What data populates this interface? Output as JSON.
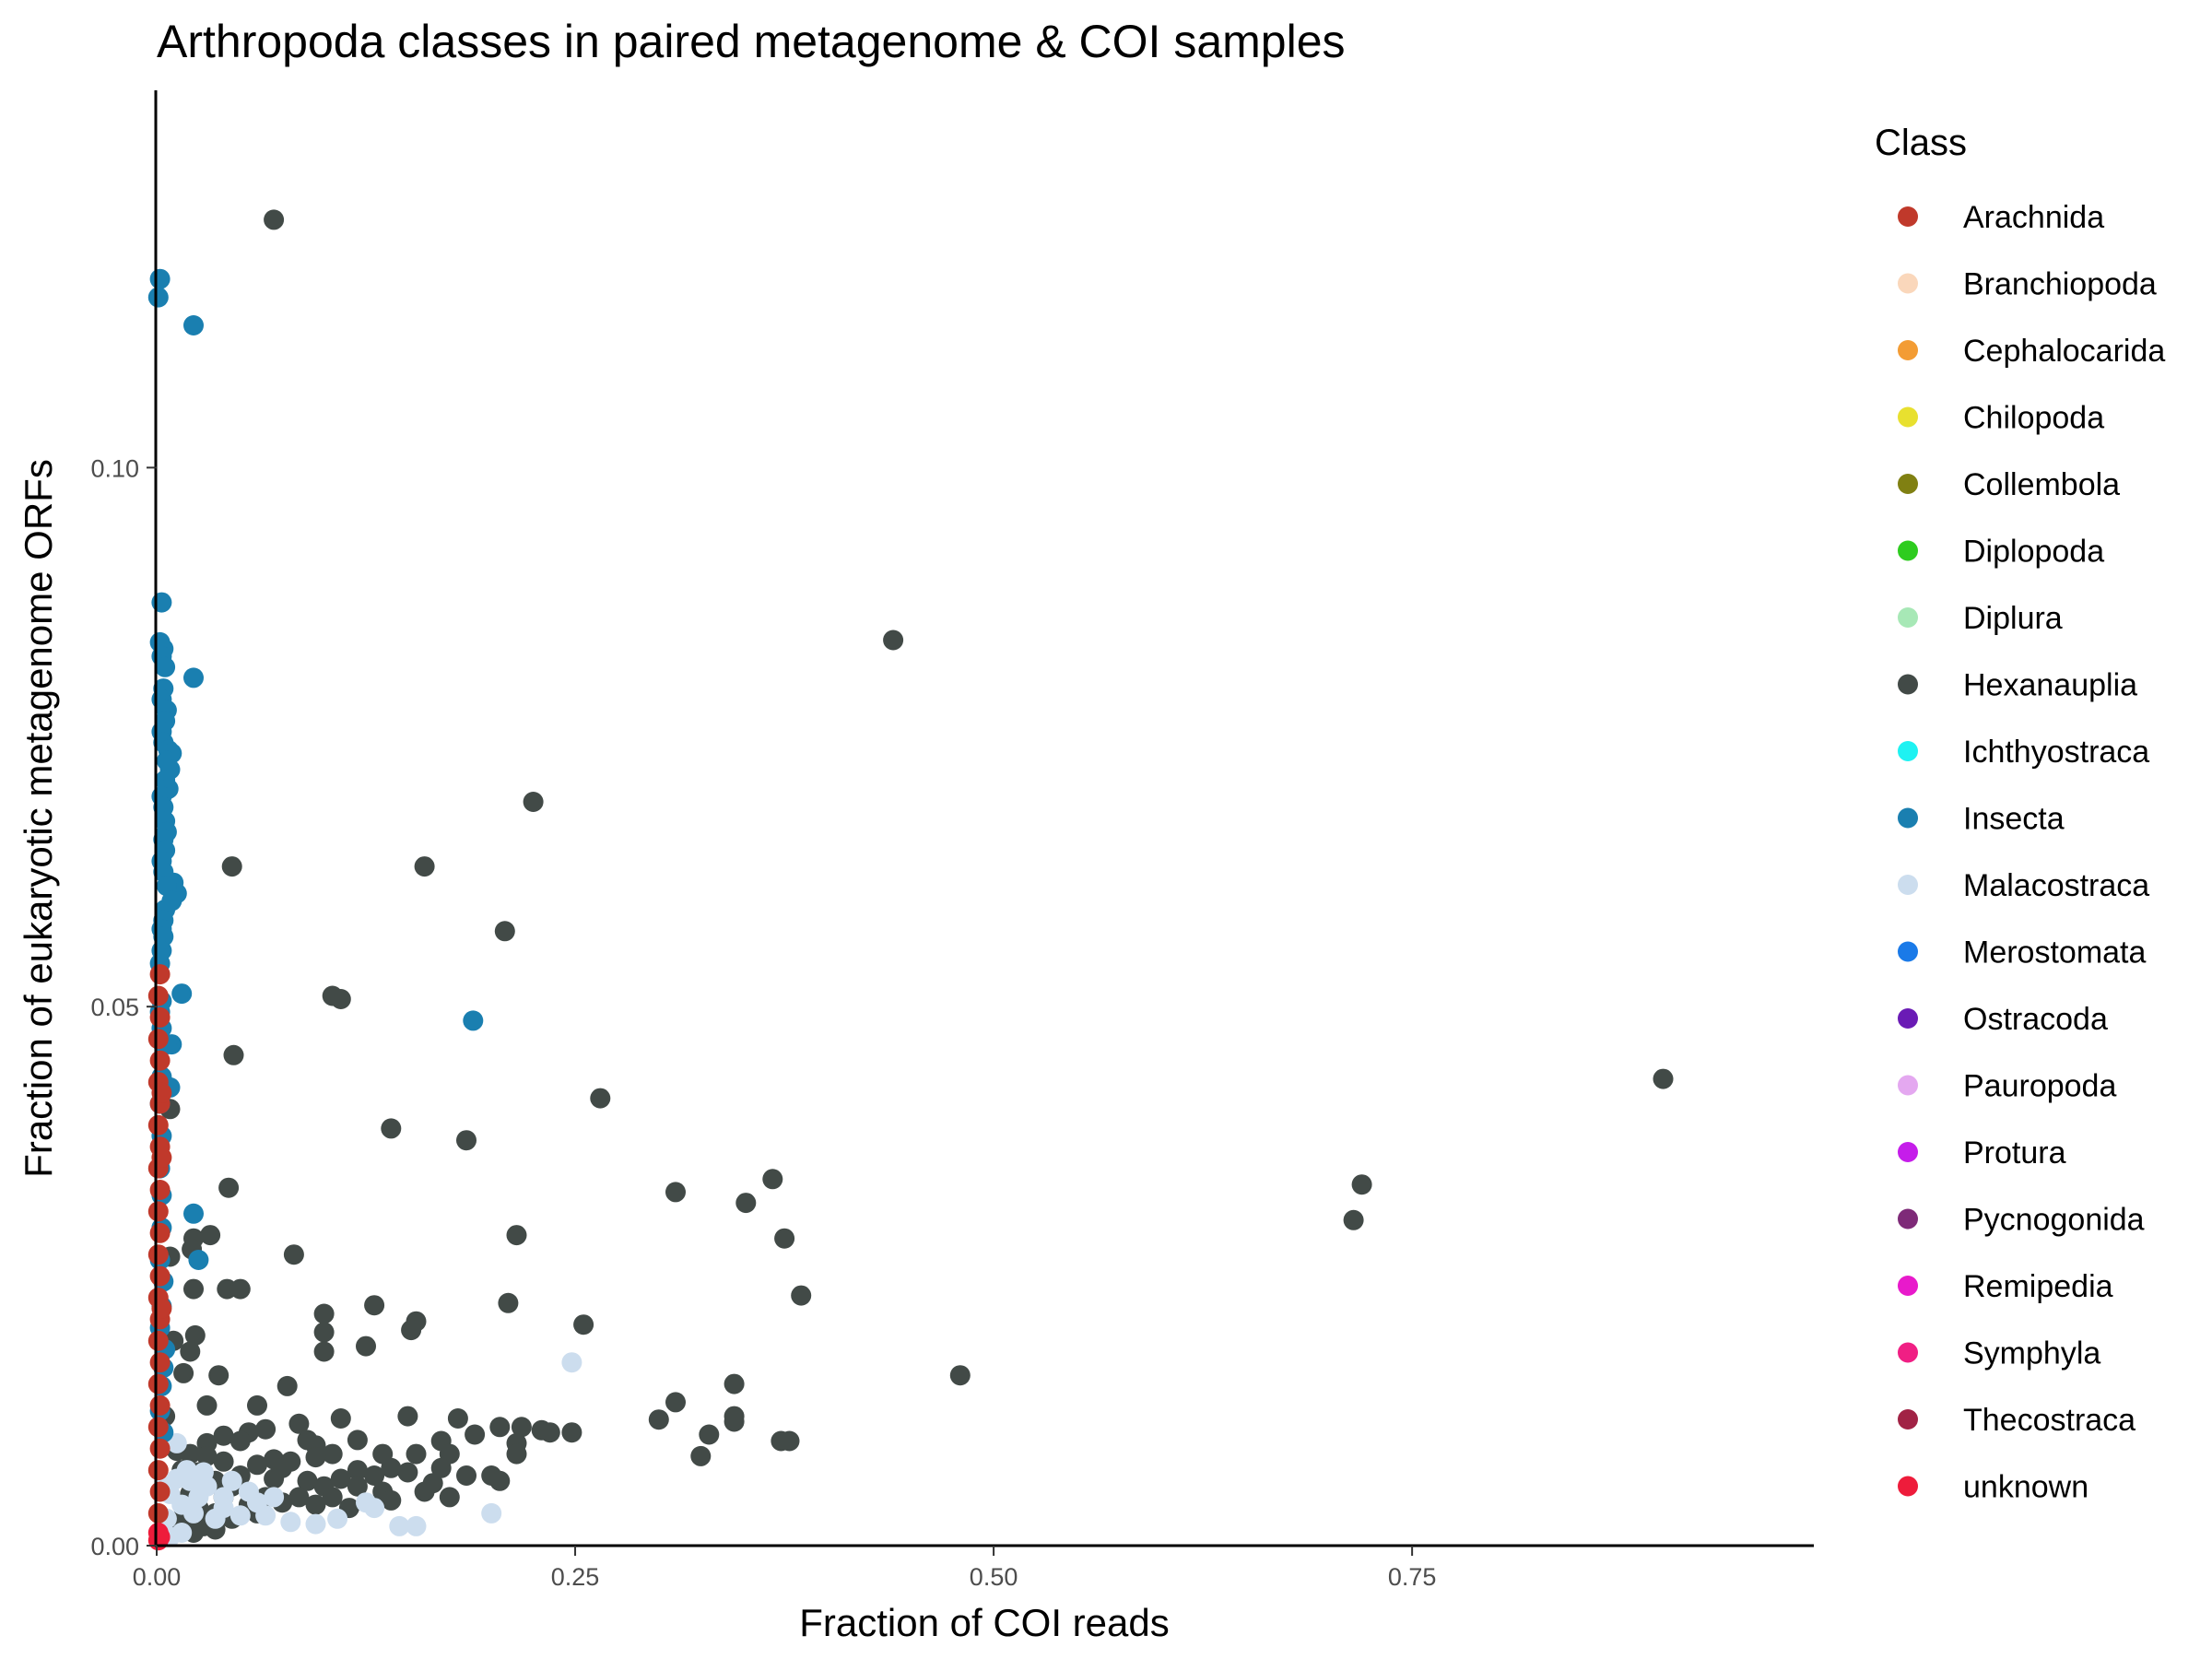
{
  "chart_data": {
    "type": "scatter",
    "title": "Arthropoda classes in paired metagenome & COI samples",
    "xlabel": "Fraction of COI reads",
    "ylabel": "Fraction of eukaryotic metagenome ORFs",
    "xlim": [
      0,
      0.99
    ],
    "ylim": [
      0,
      0.135
    ],
    "xticks": [
      {
        "value": 0,
        "label": "0.00"
      },
      {
        "value": 0.25,
        "label": "0.25"
      },
      {
        "value": 0.5,
        "label": "0.50"
      },
      {
        "value": 0.75,
        "label": "0.75"
      }
    ],
    "yticks": [
      {
        "value": 0,
        "label": "0.00"
      },
      {
        "value": 0.05,
        "label": "0.05"
      },
      {
        "value": 0.1,
        "label": "0.10"
      }
    ],
    "grid": false,
    "legend": {
      "title": "Class",
      "placement": "right",
      "entries": [
        {
          "name": "Arachnida",
          "color": "#C0392B"
        },
        {
          "name": "Branchiopoda",
          "color": "#FAD7BB"
        },
        {
          "name": "Cephalocarida",
          "color": "#F39C34"
        },
        {
          "name": "Chilopoda",
          "color": "#E8E02F"
        },
        {
          "name": "Collembola",
          "color": "#808012"
        },
        {
          "name": "Diplopoda",
          "color": "#2ECC1F"
        },
        {
          "name": "Diplura",
          "color": "#A7E8B6"
        },
        {
          "name": "Hexanauplia",
          "color": "#424A47"
        },
        {
          "name": "Ichthyostraca",
          "color": "#1EF2F2"
        },
        {
          "name": "Insecta",
          "color": "#1A7FB0"
        },
        {
          "name": "Malacostraca",
          "color": "#CCDDEE"
        },
        {
          "name": "Merostomata",
          "color": "#1A7AE8"
        },
        {
          "name": "Ostracoda",
          "color": "#6A1BB5"
        },
        {
          "name": "Pauropoda",
          "color": "#E4A8F0"
        },
        {
          "name": "Protura",
          "color": "#C51DEA"
        },
        {
          "name": "Pycnogonida",
          "color": "#7E2A78"
        },
        {
          "name": "Remipedia",
          "color": "#E81ACB"
        },
        {
          "name": "Symphyla",
          "color": "#F01F84"
        },
        {
          "name": "Thecostraca",
          "color": "#A12245"
        },
        {
          "name": "unknown",
          "color": "#EE1C3B"
        }
      ]
    },
    "series": [
      {
        "name": "Hexanauplia",
        "color": "#424A47",
        "points": [
          [
            0.07,
            0.123
          ],
          [
            0.44,
            0.084
          ],
          [
            0.225,
            0.069
          ],
          [
            0.045,
            0.063
          ],
          [
            0.16,
            0.063
          ],
          [
            0.208,
            0.057
          ],
          [
            0.105,
            0.051
          ],
          [
            0.11,
            0.0507
          ],
          [
            0.046,
            0.0455
          ],
          [
            0.9,
            0.0433
          ],
          [
            0.265,
            0.0415
          ],
          [
            0.008,
            0.0405
          ],
          [
            0.14,
            0.0387
          ],
          [
            0.185,
            0.0376
          ],
          [
            0.72,
            0.0335
          ],
          [
            0.368,
            0.034
          ],
          [
            0.043,
            0.0332
          ],
          [
            0.31,
            0.0328
          ],
          [
            0.352,
            0.0318
          ],
          [
            0.715,
            0.0302
          ],
          [
            0.032,
            0.0288
          ],
          [
            0.022,
            0.0285
          ],
          [
            0.215,
            0.0288
          ],
          [
            0.375,
            0.0285
          ],
          [
            0.021,
            0.0275
          ],
          [
            0.082,
            0.027
          ],
          [
            0.008,
            0.0268
          ],
          [
            0.385,
            0.0232
          ],
          [
            0.022,
            0.0238
          ],
          [
            0.042,
            0.0238
          ],
          [
            0.05,
            0.0238
          ],
          [
            0.21,
            0.0225
          ],
          [
            0.1,
            0.0215
          ],
          [
            0.13,
            0.0223
          ],
          [
            0.155,
            0.0208
          ],
          [
            0.152,
            0.02
          ],
          [
            0.255,
            0.0205
          ],
          [
            0.1,
            0.0198
          ],
          [
            0.023,
            0.0195
          ],
          [
            0.01,
            0.019
          ],
          [
            0.125,
            0.0185
          ],
          [
            0.1,
            0.018
          ],
          [
            0.02,
            0.018
          ],
          [
            0.016,
            0.016
          ],
          [
            0.037,
            0.0158
          ],
          [
            0.48,
            0.0158
          ],
          [
            0.078,
            0.0148
          ],
          [
            0.345,
            0.015
          ],
          [
            0.31,
            0.0133
          ],
          [
            0.03,
            0.013
          ],
          [
            0.06,
            0.013
          ],
          [
            0.15,
            0.012
          ],
          [
            0.18,
            0.0118
          ],
          [
            0.11,
            0.0118
          ],
          [
            0.3,
            0.0117
          ],
          [
            0.345,
            0.012
          ],
          [
            0.345,
            0.0115
          ],
          [
            0.085,
            0.0113
          ],
          [
            0.205,
            0.011
          ],
          [
            0.218,
            0.011
          ],
          [
            0.23,
            0.0107
          ],
          [
            0.235,
            0.0105
          ],
          [
            0.248,
            0.0105
          ],
          [
            0.33,
            0.0103
          ],
          [
            0.373,
            0.0097
          ],
          [
            0.378,
            0.0097
          ],
          [
            0.12,
            0.0098
          ],
          [
            0.17,
            0.0097
          ],
          [
            0.19,
            0.0103
          ],
          [
            0.215,
            0.0095
          ],
          [
            0.055,
            0.0105
          ],
          [
            0.065,
            0.0108
          ],
          [
            0.09,
            0.0098
          ],
          [
            0.095,
            0.0093
          ],
          [
            0.215,
            0.0085
          ],
          [
            0.135,
            0.0085
          ],
          [
            0.155,
            0.0085
          ],
          [
            0.175,
            0.0085
          ],
          [
            0.105,
            0.0085
          ],
          [
            0.325,
            0.0083
          ],
          [
            0.03,
            0.0095
          ],
          [
            0.04,
            0.0102
          ],
          [
            0.05,
            0.0097
          ],
          [
            0.07,
            0.008
          ],
          [
            0.08,
            0.0078
          ],
          [
            0.095,
            0.0082
          ],
          [
            0.012,
            0.0088
          ],
          [
            0.02,
            0.0085
          ],
          [
            0.03,
            0.0083
          ],
          [
            0.04,
            0.0078
          ],
          [
            0.06,
            0.0075
          ],
          [
            0.075,
            0.0072
          ],
          [
            0.12,
            0.007
          ],
          [
            0.14,
            0.0072
          ],
          [
            0.15,
            0.0068
          ],
          [
            0.17,
            0.0072
          ],
          [
            0.2,
            0.0065
          ],
          [
            0.205,
            0.006
          ],
          [
            0.185,
            0.0065
          ],
          [
            0.13,
            0.0065
          ],
          [
            0.11,
            0.0062
          ],
          [
            0.09,
            0.006
          ],
          [
            0.07,
            0.0062
          ],
          [
            0.05,
            0.0065
          ],
          [
            0.025,
            0.0068
          ],
          [
            0.015,
            0.007
          ],
          [
            0.035,
            0.006
          ],
          [
            0.045,
            0.0055
          ],
          [
            0.1,
            0.0055
          ],
          [
            0.12,
            0.0055
          ],
          [
            0.135,
            0.005
          ],
          [
            0.16,
            0.005
          ],
          [
            0.175,
            0.0045
          ],
          [
            0.105,
            0.0045
          ],
          [
            0.085,
            0.0045
          ],
          [
            0.065,
            0.0045
          ],
          [
            0.04,
            0.0045
          ],
          [
            0.02,
            0.0048
          ],
          [
            0.025,
            0.0035
          ],
          [
            0.035,
            0.003
          ],
          [
            0.055,
            0.0038
          ],
          [
            0.075,
            0.004
          ],
          [
            0.095,
            0.0038
          ],
          [
            0.115,
            0.0035
          ],
          [
            0.03,
            0.0022
          ],
          [
            0.015,
            0.0025
          ],
          [
            0.045,
            0.0025
          ],
          [
            0.028,
            0.0018
          ],
          [
            0.035,
            0.0015
          ],
          [
            0.01,
            0.0015
          ],
          [
            0.022,
            0.0012
          ],
          [
            0.06,
            0.003
          ],
          [
            0.14,
            0.0042
          ],
          [
            0.165,
            0.0058
          ],
          [
            0.005,
            0.012
          ]
        ]
      },
      {
        "name": "Malacostraca",
        "color": "#CCDDEE",
        "points": [
          [
            0.248,
            0.017
          ],
          [
            0.2,
            0.003
          ],
          [
            0.145,
            0.0018
          ],
          [
            0.155,
            0.0018
          ],
          [
            0.13,
            0.0035
          ],
          [
            0.125,
            0.004
          ],
          [
            0.108,
            0.0025
          ],
          [
            0.095,
            0.002
          ],
          [
            0.08,
            0.0022
          ],
          [
            0.065,
            0.0028
          ],
          [
            0.06,
            0.004
          ],
          [
            0.055,
            0.005
          ],
          [
            0.04,
            0.0045
          ],
          [
            0.03,
            0.0055
          ],
          [
            0.028,
            0.0068
          ],
          [
            0.02,
            0.006
          ],
          [
            0.018,
            0.007
          ],
          [
            0.012,
            0.0062
          ],
          [
            0.008,
            0.0048
          ],
          [
            0.005,
            0.0055
          ],
          [
            0.015,
            0.0038
          ],
          [
            0.022,
            0.003
          ],
          [
            0.04,
            0.0035
          ],
          [
            0.05,
            0.0028
          ],
          [
            0.07,
            0.0045
          ],
          [
            0.015,
            0.0012
          ],
          [
            0.008,
            0.0008
          ],
          [
            0.025,
            0.0045
          ],
          [
            0.045,
            0.006
          ],
          [
            0.012,
            0.0095
          ],
          [
            0.006,
            0.0025
          ],
          [
            0.035,
            0.0025
          ]
        ]
      },
      {
        "name": "Insecta",
        "color": "#1A7FB0",
        "points": [
          [
            0.002,
            0.1175
          ],
          [
            0.001,
            0.1158
          ],
          [
            0.022,
            0.1132
          ],
          [
            0.003,
            0.0875
          ],
          [
            0.002,
            0.0838
          ],
          [
            0.004,
            0.0832
          ],
          [
            0.003,
            0.0825
          ],
          [
            0.005,
            0.0815
          ],
          [
            0.022,
            0.0805
          ],
          [
            0.004,
            0.0795
          ],
          [
            0.003,
            0.0785
          ],
          [
            0.006,
            0.0775
          ],
          [
            0.005,
            0.0765
          ],
          [
            0.003,
            0.0755
          ],
          [
            0.004,
            0.0745
          ],
          [
            0.007,
            0.0738
          ],
          [
            0.009,
            0.0735
          ],
          [
            0.006,
            0.0728
          ],
          [
            0.008,
            0.072
          ],
          [
            0.005,
            0.071
          ],
          [
            0.007,
            0.0702
          ],
          [
            0.003,
            0.0695
          ],
          [
            0.004,
            0.0685
          ],
          [
            0.005,
            0.0672
          ],
          [
            0.006,
            0.0662
          ],
          [
            0.004,
            0.0655
          ],
          [
            0.005,
            0.0645
          ],
          [
            0.003,
            0.0635
          ],
          [
            0.004,
            0.0625
          ],
          [
            0.01,
            0.0615
          ],
          [
            0.012,
            0.0605
          ],
          [
            0.006,
            0.0612
          ],
          [
            0.009,
            0.0598
          ],
          [
            0.005,
            0.059
          ],
          [
            0.004,
            0.058
          ],
          [
            0.003,
            0.0572
          ],
          [
            0.004,
            0.0565
          ],
          [
            0.003,
            0.0552
          ],
          [
            0.002,
            0.054
          ],
          [
            0.015,
            0.0512
          ],
          [
            0.003,
            0.0505
          ],
          [
            0.002,
            0.0495
          ],
          [
            0.003,
            0.048
          ],
          [
            0.189,
            0.0487
          ],
          [
            0.009,
            0.0465
          ],
          [
            0.006,
            0.0465
          ],
          [
            0.004,
            0.0465
          ],
          [
            0.008,
            0.0425
          ],
          [
            0.003,
            0.0435
          ],
          [
            0.002,
            0.041
          ],
          [
            0.003,
            0.038
          ],
          [
            0.002,
            0.035
          ],
          [
            0.003,
            0.0325
          ],
          [
            0.022,
            0.0308
          ],
          [
            0.025,
            0.0265
          ],
          [
            0.003,
            0.0295
          ],
          [
            0.002,
            0.0265
          ],
          [
            0.004,
            0.0245
          ],
          [
            0.003,
            0.0222
          ],
          [
            0.002,
            0.0202
          ],
          [
            0.005,
            0.0182
          ],
          [
            0.004,
            0.0165
          ],
          [
            0.003,
            0.0148
          ],
          [
            0.002,
            0.0125
          ],
          [
            0.004,
            0.0105
          ]
        ]
      },
      {
        "name": "Arachnida",
        "color": "#C0392B",
        "points": [
          [
            0.002,
            0.053
          ],
          [
            0.001,
            0.051
          ],
          [
            0.002,
            0.049
          ],
          [
            0.001,
            0.047
          ],
          [
            0.002,
            0.045
          ],
          [
            0.001,
            0.043
          ],
          [
            0.002,
            0.041
          ],
          [
            0.001,
            0.039
          ],
          [
            0.002,
            0.037
          ],
          [
            0.001,
            0.035
          ],
          [
            0.002,
            0.033
          ],
          [
            0.001,
            0.031
          ],
          [
            0.002,
            0.029
          ],
          [
            0.001,
            0.027
          ],
          [
            0.002,
            0.025
          ],
          [
            0.001,
            0.023
          ],
          [
            0.002,
            0.021
          ],
          [
            0.001,
            0.019
          ],
          [
            0.002,
            0.017
          ],
          [
            0.001,
            0.015
          ],
          [
            0.002,
            0.013
          ],
          [
            0.001,
            0.011
          ],
          [
            0.002,
            0.009
          ],
          [
            0.001,
            0.007
          ],
          [
            0.002,
            0.005
          ],
          [
            0.001,
            0.003
          ],
          [
            0.003,
            0.042
          ],
          [
            0.003,
            0.036
          ],
          [
            0.003,
            0.022
          ]
        ]
      },
      {
        "name": "unknown",
        "color": "#EE1C3B",
        "points": [
          [
            0.001,
            0.0005
          ],
          [
            0.002,
            0.0008
          ],
          [
            0.001,
            0.0012
          ]
        ]
      }
    ]
  }
}
